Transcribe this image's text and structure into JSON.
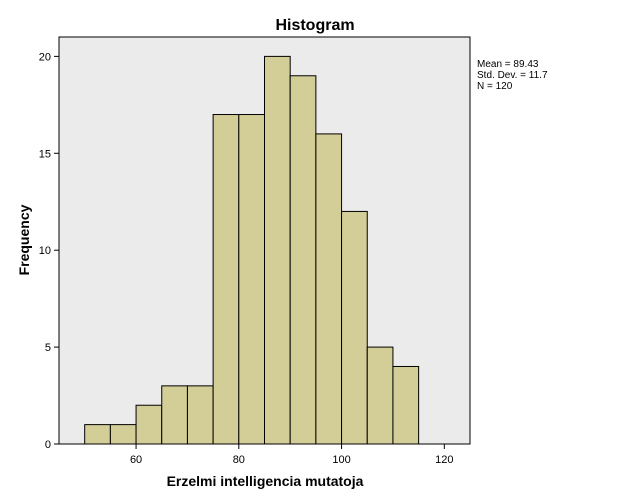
{
  "chart_data": {
    "type": "bar",
    "title": "Histogram",
    "xlabel": "Erzelmi intelligencia mutatoja",
    "ylabel": "Frequency",
    "bin_edges": [
      50,
      55,
      60,
      65,
      70,
      75,
      80,
      85,
      90,
      95,
      100,
      105,
      110,
      115
    ],
    "values": [
      1,
      1,
      2,
      3,
      3,
      17,
      17,
      20,
      19,
      16,
      12,
      5,
      4
    ],
    "xlim": [
      45,
      125
    ],
    "ylim": [
      0,
      21
    ],
    "xticks": [
      60,
      80,
      100,
      120
    ],
    "yticks": [
      0,
      5,
      10,
      15,
      20
    ],
    "grid": false,
    "colors": {
      "bar_fill": "#d3ce97",
      "bar_stroke": "#000000",
      "plot_background": "#ebebeb"
    },
    "stats": {
      "mean": "Mean = 89.43",
      "std": "Std. Dev. = 11.7",
      "n": "N = 120"
    }
  }
}
